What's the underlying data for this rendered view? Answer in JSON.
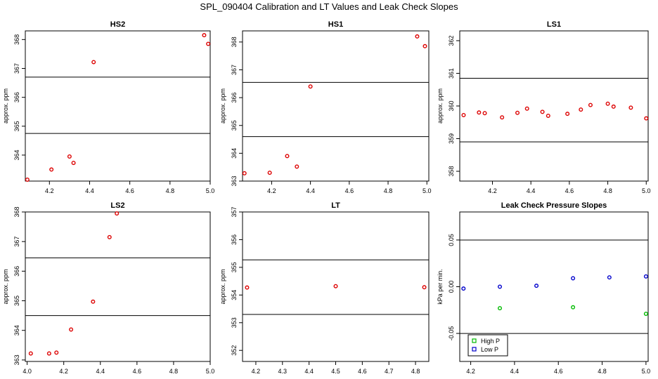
{
  "title": "SPL_090404  Calibration and LT Values and Leak Check Slopes",
  "chart_data": [
    {
      "type": "scatter",
      "title": "HS2",
      "ylabel": "approx. ppm",
      "xlim": [
        4.08,
        5.0
      ],
      "ylim": [
        363.1,
        368.3
      ],
      "xticks": [
        4.2,
        4.4,
        4.6,
        4.8,
        5.0
      ],
      "xtick_labels": [
        "4.2",
        "4.4",
        "4.6",
        "4.8",
        "5.0"
      ],
      "yticks": [
        364,
        365,
        366,
        367,
        368
      ],
      "ytick_labels": [
        "364",
        "365",
        "366",
        "367",
        "368"
      ],
      "hlines": [
        364.75,
        366.7
      ],
      "series": [
        {
          "color": "#dd0000",
          "x": [
            4.09,
            4.21,
            4.3,
            4.32,
            4.42,
            4.97,
            4.99
          ],
          "y": [
            363.15,
            363.5,
            363.95,
            363.73,
            367.22,
            368.15,
            367.85
          ]
        }
      ]
    },
    {
      "type": "scatter",
      "title": "HS1",
      "ylabel": "approx. ppm",
      "xlim": [
        4.05,
        5.01
      ],
      "ylim": [
        363.0,
        368.4
      ],
      "xticks": [
        4.2,
        4.4,
        4.6,
        4.8,
        5.0
      ],
      "xtick_labels": [
        "4.2",
        "4.4",
        "4.6",
        "4.8",
        "5.0"
      ],
      "yticks": [
        363,
        364,
        365,
        366,
        367,
        368
      ],
      "ytick_labels": [
        "363",
        "364",
        "365",
        "366",
        "367",
        "368"
      ],
      "hlines": [
        364.6,
        366.55
      ],
      "series": [
        {
          "color": "#dd0000",
          "x": [
            4.06,
            4.19,
            4.28,
            4.33,
            4.4,
            4.95,
            4.99
          ],
          "y": [
            363.28,
            363.3,
            363.9,
            363.52,
            366.4,
            368.2,
            367.85
          ]
        }
      ]
    },
    {
      "type": "scatter",
      "title": "LS1",
      "ylabel": "approx. ppm",
      "xlim": [
        4.03,
        5.01
      ],
      "ylim": [
        357.7,
        362.3
      ],
      "xticks": [
        4.2,
        4.4,
        4.6,
        4.8,
        5.0
      ],
      "xtick_labels": [
        "4.2",
        "4.4",
        "4.6",
        "4.8",
        "5.0"
      ],
      "yticks": [
        358,
        359,
        360,
        361,
        362
      ],
      "ytick_labels": [
        "358",
        "359",
        "360",
        "361",
        "362"
      ],
      "hlines": [
        358.9,
        360.85
      ],
      "series": [
        {
          "color": "#dd0000",
          "x": [
            4.05,
            4.13,
            4.16,
            4.25,
            4.33,
            4.38,
            4.46,
            4.49,
            4.59,
            4.66,
            4.71,
            4.8,
            4.83,
            4.92,
            5.0
          ],
          "y": [
            359.72,
            359.8,
            359.78,
            359.65,
            359.79,
            359.92,
            359.82,
            359.7,
            359.76,
            359.89,
            360.03,
            360.07,
            359.98,
            359.95,
            359.62
          ]
        }
      ]
    },
    {
      "type": "scatter",
      "title": "LS2",
      "ylabel": "approx. ppm",
      "xlim": [
        3.99,
        5.0
      ],
      "ylim": [
        362.95,
        368.0
      ],
      "xticks": [
        4.0,
        4.2,
        4.4,
        4.6,
        4.8,
        5.0
      ],
      "xtick_labels": [
        "4.0",
        "4.2",
        "4.4",
        "4.6",
        "4.8",
        "5.0"
      ],
      "yticks": [
        363,
        364,
        365,
        366,
        367,
        368
      ],
      "ytick_labels": [
        "363",
        "364",
        "365",
        "366",
        "367",
        "368"
      ],
      "hlines": [
        364.5,
        366.45
      ],
      "series": [
        {
          "color": "#dd0000",
          "x": [
            4.02,
            4.12,
            4.16,
            4.24,
            4.36,
            4.45,
            4.49
          ],
          "y": [
            363.22,
            363.22,
            363.25,
            364.03,
            364.97,
            367.15,
            367.95
          ]
        }
      ]
    },
    {
      "type": "scatter",
      "title": "LT",
      "ylabel": "approx. ppm",
      "xlim": [
        4.15,
        4.85
      ],
      "ylim": [
        351.6,
        357.0
      ],
      "xticks": [
        4.2,
        4.3,
        4.4,
        4.5,
        4.6,
        4.7,
        4.8
      ],
      "xtick_labels": [
        "4.2",
        "4.3",
        "4.4",
        "4.5",
        "4.6",
        "4.7",
        "4.8"
      ],
      "yticks": [
        352,
        353,
        354,
        355,
        356,
        357
      ],
      "ytick_labels": [
        "352",
        "353",
        "354",
        "355",
        "356",
        "357"
      ],
      "hlines": [
        353.3,
        355.27
      ],
      "series": [
        {
          "color": "#dd0000",
          "x": [
            4.167,
            4.5,
            4.833
          ],
          "y": [
            354.27,
            354.32,
            354.28
          ]
        }
      ]
    },
    {
      "type": "scatter",
      "title": "Leak Check Pressure Slopes",
      "ylabel": "kPa per min.",
      "xlim": [
        4.15,
        5.01
      ],
      "ylim": [
        -0.08,
        0.08
      ],
      "xticks": [
        4.2,
        4.4,
        4.6,
        4.8,
        5.0
      ],
      "xtick_labels": [
        "4.2",
        "4.4",
        "4.6",
        "4.8",
        "5.0"
      ],
      "yticks": [
        -0.05,
        0.0,
        0.05
      ],
      "ytick_labels": [
        "-0.05",
        "0.00",
        "0.05"
      ],
      "hlines": [
        -0.05,
        0.05
      ],
      "legend": {
        "position": "bottom-left",
        "entries": [
          "High P",
          "Low P"
        ]
      },
      "series": [
        {
          "name": "High P",
          "color": "#00bb00",
          "x": [
            4.333,
            4.667,
            5.0
          ],
          "y": [
            -0.023,
            -0.022,
            -0.029
          ]
        },
        {
          "name": "Low P",
          "color": "#0000cc",
          "x": [
            4.167,
            4.333,
            4.5,
            4.667,
            4.833,
            5.0
          ],
          "y": [
            -0.002,
            0.0,
            0.001,
            0.009,
            0.01,
            0.011
          ]
        }
      ]
    }
  ]
}
